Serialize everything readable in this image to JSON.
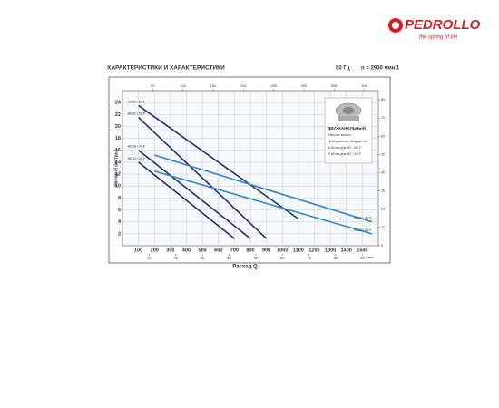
{
  "header": {
    "brand": "PEDROLLO",
    "slogan": "the spring of life",
    "title": "ХАРАКТЕРИСТИКИ И ХАРАКТЕРИСТИКИ",
    "frequency": "50 Гц",
    "speed": "n = 2900 мин.1"
  },
  "inset": {
    "title": "ДВУХКАНАЛЬНЫЙ",
    "subtitle": "Рабочее колесо",
    "passage": "Проходимость твердых тел",
    "lines": [
      "Ø 50 мм для MC / 50-F",
      "Ø 65 мм для MC / 65-F"
    ]
  },
  "chart_data": {
    "type": "line",
    "x_label": "Расход Q",
    "y_label": "Напор H (метры)",
    "x_unit": "л/мин",
    "xlim": [
      0,
      1600
    ],
    "xticks": [
      100,
      200,
      300,
      400,
      500,
      600,
      700,
      800,
      900,
      1000,
      1100,
      1200,
      1300,
      1400,
      1500
    ],
    "ylim": [
      0,
      26
    ],
    "yticks": [
      2,
      4,
      6,
      8,
      10,
      12,
      14,
      16,
      18,
      20,
      22,
      24
    ],
    "y2lim": [
      0,
      85
    ],
    "y2ticks": [
      0,
      10,
      20,
      30,
      40,
      50,
      60,
      70,
      80
    ],
    "x2lim": [
      0,
      423
    ],
    "x2ticks": [
      50,
      100,
      150,
      200,
      250,
      300,
      350,
      400
    ],
    "x3lim": [
      0,
      96
    ],
    "x3ticks": [
      10,
      20,
      30,
      40,
      50,
      60,
      70,
      80,
      90
    ],
    "grid": true,
    "series": [
      {
        "name": "MC40 / 50-F",
        "color": "#23306e",
        "x": [
          100,
          1100
        ],
        "values": [
          23.5,
          4.5
        ]
      },
      {
        "name": "MC30 / 50-F",
        "color": "#23306e",
        "x": [
          100,
          900
        ],
        "values": [
          21.5,
          1.2
        ]
      },
      {
        "name": "MC28 / 30-F",
        "color": "#23306e",
        "x": [
          100,
          800
        ],
        "values": [
          16,
          1.2
        ]
      },
      {
        "name": "MC10 / 30-F",
        "color": "#23306e",
        "x": [
          100,
          700
        ],
        "values": [
          14,
          1.2
        ]
      },
      {
        "name": "MC40 / 65-F",
        "color": "#2f86c8",
        "x": [
          200,
          1560
        ],
        "values": [
          15.2,
          4
        ]
      },
      {
        "name": "MC30 / 65-F",
        "color": "#2f86c8",
        "x": [
          200,
          1560
        ],
        "values": [
          12.5,
          2
        ]
      }
    ]
  }
}
